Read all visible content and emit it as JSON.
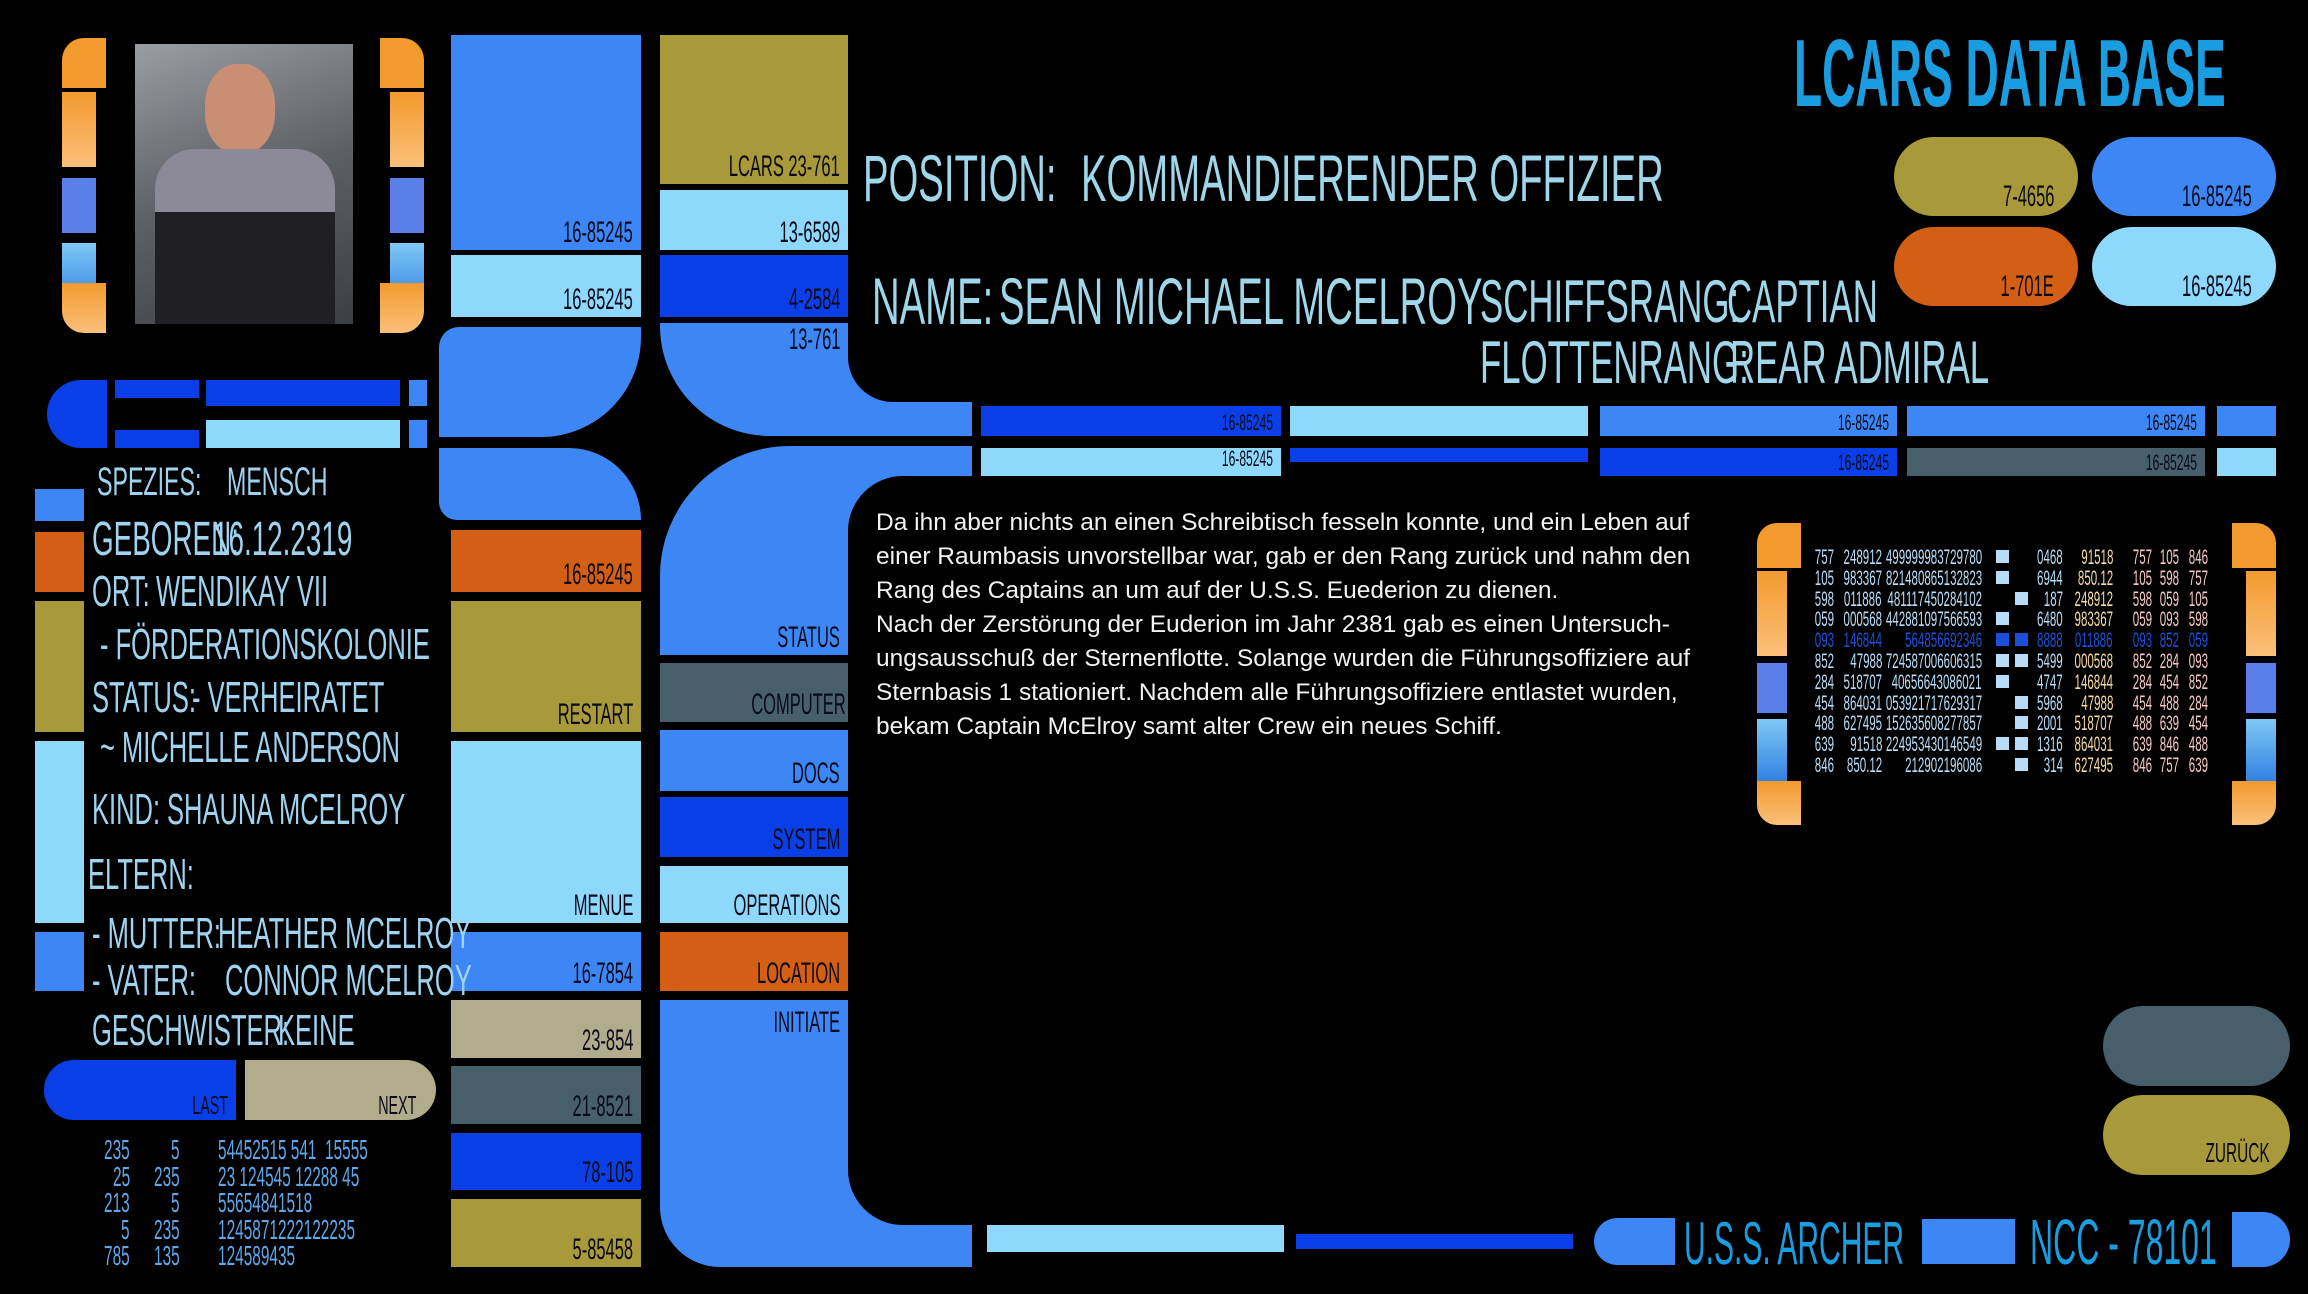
{
  "colors": {
    "blue": "#3d86f5",
    "light_blue": "#8ed8fc",
    "dark_blue": "#0a3fe8",
    "olive": "#a89a3a",
    "orange": "#d35f14",
    "slate": "#475f6a",
    "tan": "#b0ac8c",
    "bracket_orange": "#f39a2e",
    "title": "#1a9de0",
    "text_light": "#9fd3f0"
  },
  "header": {
    "title": "LCARS DATA BASE",
    "position_label": "POSITION:",
    "position_value": "KOMMANDIERENDER OFFIZIER",
    "name_label": "NAME:",
    "name_value": "SEAN MICHAEL MCELROY",
    "ship_rank_label": "SCHIFFSRANG:",
    "ship_rank_value": "CAPTIAN",
    "fleet_rank_label": "FLOTTENRANG:",
    "fleet_rank_value": "REAR ADMIRAL"
  },
  "top_pills": [
    "7-4656",
    "16-85245",
    "1-701E",
    "16-85245"
  ],
  "column1": {
    "top1": "16-85245",
    "top2": "16-85245",
    "orange": "16-85245",
    "restart": "RESTART",
    "menue": "MENUE",
    "b1": "16-7854",
    "b2": "23-854",
    "b3": "21-8521",
    "b4": "78-105",
    "b5": "5-85458"
  },
  "column2": {
    "lcars": "LCARS 23-761",
    "c1": "13-6589",
    "c2": "4-2584",
    "c3": "13-761",
    "status": "STATUS",
    "computer": "COMPUTER",
    "docs": "DOCS",
    "system": "SYSTEM",
    "operations": "OPERATIONS",
    "location": "LOCATION",
    "initiate": "INITIATE"
  },
  "bars": {
    "row1": [
      "16-85245",
      "16-85245",
      "16-85245"
    ],
    "row2": [
      "16-85245",
      "16-85245",
      "16-85245"
    ]
  },
  "profile": {
    "species_label": "SPEZIES:",
    "species": "MENSCH",
    "born_label": "GEBOREN:",
    "born": "16.12.2319",
    "place_label": "ORT:",
    "place": "WENDIKAY VII",
    "place_note": "- FÖRDERATIONSKOLONIE",
    "status_label": "STATUS:",
    "status": "- VERHEIRATET",
    "spouse": "~ MICHELLE ANDERSON",
    "child_label": "KIND:",
    "child": "SHAUNA MCELROY",
    "parents_label": "ELTERN:",
    "mother_label": "- MUTTER:",
    "mother": "HEATHER MCELROY",
    "father_label": "- VATER:",
    "father": "CONNOR MCELROY",
    "siblings_label": "GESCHWISTER:",
    "siblings": "KEINE"
  },
  "nav": {
    "last": "LAST",
    "next": "NEXT",
    "back": "ZURÜCK"
  },
  "bottom_numbers": [
    [
      "235",
      "5",
      "54452515 541  15555"
    ],
    [
      "25",
      "235",
      "23 124545 12288 45"
    ],
    [
      "213",
      "5",
      "55654841518"
    ],
    [
      "5",
      "235",
      "1245871222122235"
    ],
    [
      "785",
      "135",
      "124589435"
    ]
  ],
  "biography": [
    "Da ihn aber nichts an einen Schreibtisch fesseln konnte, und ein Leben auf einer Raumbasis unvorstellbar war, gab er den Rang zurück und nahm den Rang  des Captains an um auf der U.S.S. Euederion zu dienen.",
    "Nach der Zerstörung der Euderion im Jahr  2381 gab es einen Untersuch-ungsausschuß der Sternenflotte. Solange wurden die Führungsoffiziere auf Sternbasis 1 stationiert. Nachdem alle Führungsoffiziere entlastet wurden, bekam Captain McElroy samt alter Crew ein neues Schiff."
  ],
  "data_table": {
    "highlight_row": 4,
    "rows": [
      [
        "757",
        "248912",
        "499999983729780",
        true,
        false,
        "0468",
        "91518",
        "757",
        "105",
        "846"
      ],
      [
        "105",
        "983367",
        "821480865132823",
        true,
        false,
        "6944",
        "850.12",
        "105",
        "598",
        "757"
      ],
      [
        "598",
        "011886",
        "481117450284102",
        false,
        true,
        "187",
        "248912",
        "598",
        "059",
        "105"
      ],
      [
        "059",
        "000568",
        "442881097566593",
        true,
        false,
        "6480",
        "983367",
        "059",
        "093",
        "598"
      ],
      [
        "093",
        "146844",
        "564856692346",
        true,
        true,
        "8888",
        "011886",
        "093",
        "852",
        "059"
      ],
      [
        "852",
        "47988",
        "724587006606315",
        true,
        true,
        "5499",
        "000568",
        "852",
        "284",
        "093"
      ],
      [
        "284",
        "518707",
        "40656643086021",
        true,
        false,
        "4747",
        "146844",
        "284",
        "454",
        "852"
      ],
      [
        "454",
        "864031",
        "053921717629317",
        false,
        true,
        "5968",
        "47988",
        "454",
        "488",
        "284"
      ],
      [
        "488",
        "627495",
        "152635608277857",
        false,
        true,
        "2001",
        "518707",
        "488",
        "639",
        "454"
      ],
      [
        "639",
        "91518",
        "224953430146549",
        true,
        true,
        "1316",
        "864031",
        "639",
        "846",
        "488"
      ],
      [
        "846",
        "850.12",
        "212902196086",
        false,
        true,
        "314",
        "627495",
        "846",
        "757",
        "639"
      ]
    ]
  },
  "footer": {
    "ship": "U.S.S. ARCHER",
    "registry": "NCC - 78101"
  }
}
